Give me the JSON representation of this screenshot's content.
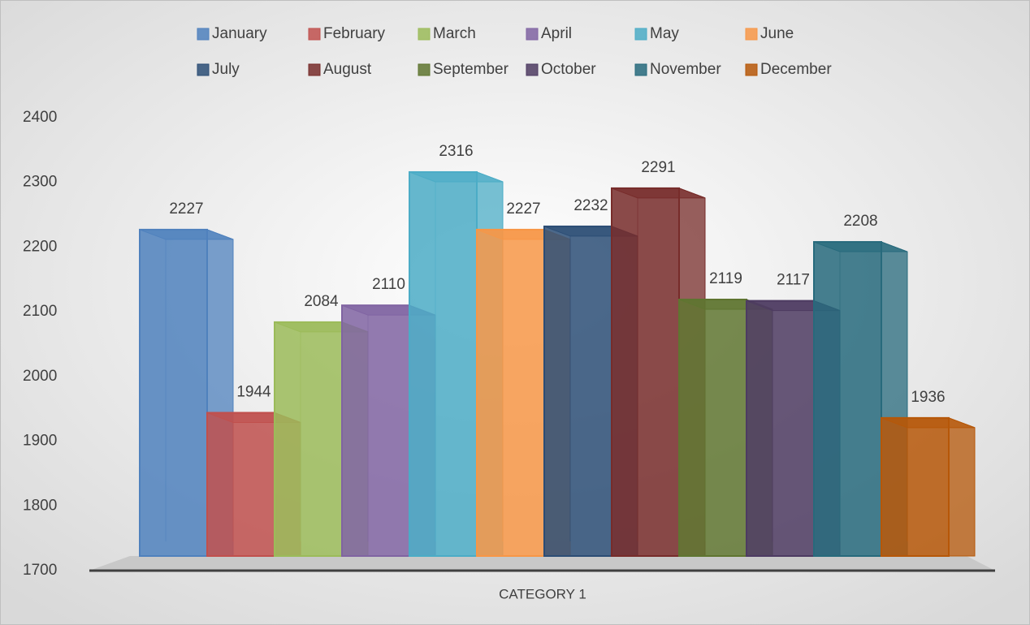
{
  "chart_data": {
    "type": "bar",
    "categories": [
      "CATEGORY 1"
    ],
    "series": [
      {
        "name": "January",
        "color": "#4f81bd",
        "values": [
          2227
        ]
      },
      {
        "name": "February",
        "color": "#c0504d",
        "values": [
          1944
        ]
      },
      {
        "name": "March",
        "color": "#9bbb59",
        "values": [
          2084
        ]
      },
      {
        "name": "April",
        "color": "#8064a2",
        "values": [
          2110
        ]
      },
      {
        "name": "May",
        "color": "#4bacc6",
        "values": [
          2316
        ]
      },
      {
        "name": "June",
        "color": "#f79646",
        "values": [
          2227
        ]
      },
      {
        "name": "July",
        "color": "#2c4d75",
        "values": [
          2232
        ]
      },
      {
        "name": "August",
        "color": "#772c2a",
        "values": [
          2291
        ]
      },
      {
        "name": "September",
        "color": "#5f7530",
        "values": [
          2119
        ]
      },
      {
        "name": "October",
        "color": "#4d3b62",
        "values": [
          2117
        ]
      },
      {
        "name": "November",
        "color": "#276a7c",
        "values": [
          2208
        ]
      },
      {
        "name": "December",
        "color": "#b65708",
        "values": [
          1936
        ]
      }
    ],
    "ylim": [
      1700,
      2400
    ],
    "yticks": [
      1700,
      1800,
      1900,
      2000,
      2100,
      2200,
      2300,
      2400
    ],
    "legend": "top"
  }
}
